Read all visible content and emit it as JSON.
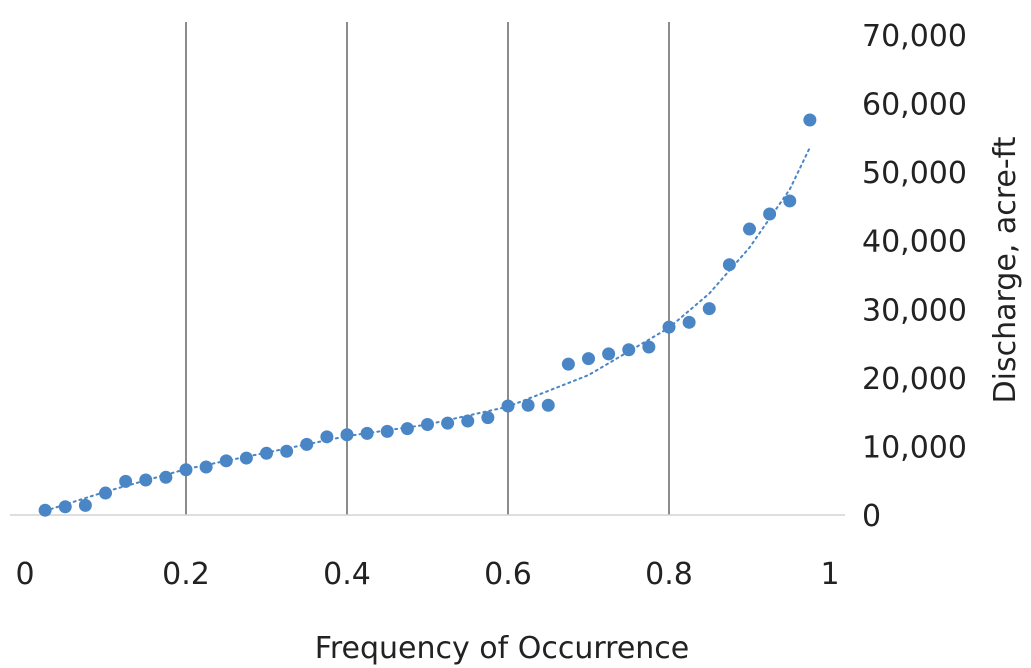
{
  "chart_data": {
    "type": "scatter",
    "title": "",
    "xlabel": "Frequency of Occurrence",
    "ylabel": "Discharge, acre-ft",
    "xlim": [
      0,
      1
    ],
    "ylim": [
      0,
      70000
    ],
    "x_ticks": [
      "0",
      "0.2",
      "0.4",
      "0.6",
      "0.8",
      "1"
    ],
    "y_ticks": [
      "0",
      "10,000",
      "20,000",
      "30,000",
      "40,000",
      "50,000",
      "60,000",
      "70,000"
    ],
    "x_tick_values": [
      0,
      0.2,
      0.4,
      0.6,
      0.8,
      1
    ],
    "y_tick_values": [
      0,
      10000,
      20000,
      30000,
      40000,
      50000,
      60000,
      70000
    ],
    "y_axis_position": "right",
    "vertical_gridlines": [
      0.2,
      0.4,
      0.6,
      0.8
    ],
    "legend": "none",
    "series": [
      {
        "marker_color": "#4a86c5",
        "x": [
          0.025,
          0.05,
          0.075,
          0.1,
          0.125,
          0.15,
          0.175,
          0.2,
          0.225,
          0.25,
          0.275,
          0.3,
          0.325,
          0.35,
          0.375,
          0.4,
          0.425,
          0.45,
          0.475,
          0.5,
          0.525,
          0.55,
          0.575,
          0.6,
          0.625,
          0.65,
          0.675,
          0.7,
          0.725,
          0.75,
          0.775,
          0.8,
          0.825,
          0.85,
          0.875,
          0.9,
          0.925,
          0.95,
          0.975
        ],
        "y": [
          700,
          1200,
          1400,
          3200,
          4900,
          5100,
          5500,
          6600,
          7000,
          7900,
          8300,
          9000,
          9300,
          10300,
          11400,
          11700,
          11900,
          12200,
          12600,
          13200,
          13400,
          13700,
          14200,
          15900,
          16000,
          16000,
          22000,
          22800,
          23500,
          24100,
          24500,
          27400,
          28100,
          30100,
          36500,
          41700,
          43900,
          45800,
          57600
        ]
      }
    ],
    "trendline": {
      "style": "dotted",
      "color": "#4a86c5",
      "x": [
        0.025,
        0.1,
        0.2,
        0.3,
        0.4,
        0.5,
        0.6,
        0.7,
        0.8,
        0.85,
        0.9,
        0.95,
        0.975
      ],
      "y": [
        600,
        3400,
        6700,
        9100,
        11500,
        13200,
        15800,
        20400,
        27300,
        32300,
        39000,
        47500,
        53600
      ]
    }
  }
}
